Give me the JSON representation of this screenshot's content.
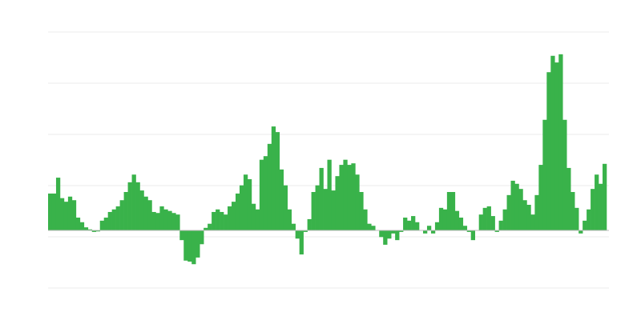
{
  "chart_data": {
    "type": "bar",
    "title": "",
    "xlabel": "",
    "ylabel": "",
    "grid": true,
    "ylim": [
      -1.125,
      3.875
    ],
    "bar_color": "#39b24a",
    "grid_color": "#ebebeb",
    "values": [
      0.72,
      0.72,
      1.03,
      0.63,
      0.56,
      0.66,
      0.59,
      0.25,
      0.16,
      0.06,
      0.02,
      -0.03,
      -0.02,
      0.19,
      0.25,
      0.36,
      0.41,
      0.47,
      0.59,
      0.75,
      0.94,
      1.09,
      0.94,
      0.78,
      0.66,
      0.59,
      0.36,
      0.34,
      0.47,
      0.41,
      0.38,
      0.34,
      0.31,
      -0.19,
      -0.59,
      -0.61,
      -0.66,
      -0.53,
      -0.27,
      0.05,
      0.13,
      0.36,
      0.41,
      0.36,
      0.31,
      0.47,
      0.56,
      0.72,
      0.88,
      1.09,
      1.0,
      0.52,
      0.41,
      1.38,
      1.45,
      1.69,
      2.03,
      1.92,
      1.19,
      0.88,
      0.41,
      0.13,
      -0.16,
      -0.47,
      -0.03,
      0.22,
      0.75,
      0.88,
      1.22,
      0.81,
      1.38,
      0.78,
      1.06,
      1.28,
      1.38,
      1.28,
      1.31,
      1.09,
      0.75,
      0.41,
      0.13,
      0.09,
      0.0,
      -0.13,
      -0.28,
      -0.16,
      -0.06,
      -0.19,
      -0.03,
      0.25,
      0.19,
      0.28,
      0.16,
      0.0,
      -0.06,
      0.09,
      -0.06,
      0.16,
      0.44,
      0.41,
      0.75,
      0.75,
      0.38,
      0.25,
      0.09,
      -0.03,
      -0.19,
      0.0,
      0.31,
      0.44,
      0.47,
      0.28,
      -0.03,
      0.19,
      0.41,
      0.69,
      0.97,
      0.91,
      0.81,
      0.59,
      0.5,
      0.31,
      0.69,
      1.28,
      2.16,
      3.09,
      3.41,
      3.28,
      3.44,
      2.16,
      1.22,
      0.75,
      0.44,
      -0.06,
      0.19,
      0.41,
      0.81,
      1.09,
      0.91,
      1.3
    ]
  }
}
